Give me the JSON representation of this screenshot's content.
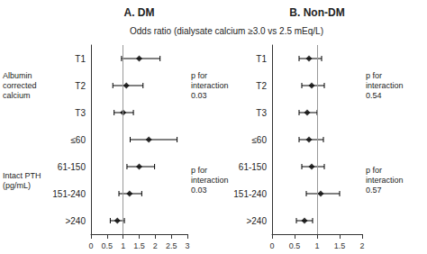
{
  "chart_data": [
    {
      "type": "scatter",
      "title": "A. DM",
      "xlabel": "Odds ratio (dialysate calcium ≥3.0 vs 2.5 mEq/L)",
      "categories": [
        "T1",
        "T2",
        "T3",
        "≤60",
        "61-150",
        "151-240",
        ">240"
      ],
      "values": [
        1.5,
        1.1,
        1.0,
        1.8,
        1.5,
        1.2,
        0.82
      ],
      "err_low": [
        0.55,
        0.42,
        0.28,
        0.58,
        0.38,
        0.33,
        0.22
      ],
      "err_high": [
        0.65,
        0.52,
        0.32,
        0.88,
        0.48,
        0.38,
        0.22
      ],
      "color": "#000000",
      "marker": "diamond",
      "xlim": [
        0,
        3
      ],
      "xticks": [
        0,
        0.5,
        1,
        1.5,
        2,
        2.5,
        3
      ],
      "grid": false,
      "vline": 1,
      "group_labels": [
        {
          "text": "Albumin\ncorrected\ncalcium",
          "rows": [
            "T1",
            "T2",
            "T3"
          ]
        },
        {
          "text": "Intact PTH\n(pg/mL)",
          "rows": [
            "≤60",
            "61-150",
            "151-240",
            ">240"
          ]
        }
      ],
      "annotations": [
        {
          "text": "p for\ninteraction\n0.03",
          "rows": [
            "T1",
            "T2",
            "T3"
          ]
        },
        {
          "text": "p for\ninteraction\n0.03",
          "rows": [
            "≤60",
            "61-150",
            "151-240",
            ">240"
          ]
        }
      ]
    },
    {
      "type": "scatter",
      "title": "B. Non-DM",
      "categories": [
        "T1",
        "T2",
        "T3",
        "≤60",
        "61-150",
        "151-240",
        ">240"
      ],
      "values": [
        0.82,
        0.88,
        0.78,
        0.82,
        0.88,
        1.08,
        0.72
      ],
      "err_low": [
        0.22,
        0.22,
        0.18,
        0.22,
        0.22,
        0.32,
        0.18
      ],
      "err_high": [
        0.28,
        0.28,
        0.22,
        0.32,
        0.28,
        0.42,
        0.18
      ],
      "color": "#000000",
      "marker": "diamond",
      "xlim": [
        0,
        2
      ],
      "xticks": [
        0,
        0.5,
        1,
        1.5,
        2
      ],
      "grid": false,
      "vline": 1,
      "annotations": [
        {
          "text": "p for\ninteraction\n0.54",
          "rows": [
            "T1",
            "T2",
            "T3"
          ]
        },
        {
          "text": "p for\ninteraction\n0.57",
          "rows": [
            "≤60",
            "61-150",
            "151-240",
            ">240"
          ]
        }
      ]
    }
  ]
}
